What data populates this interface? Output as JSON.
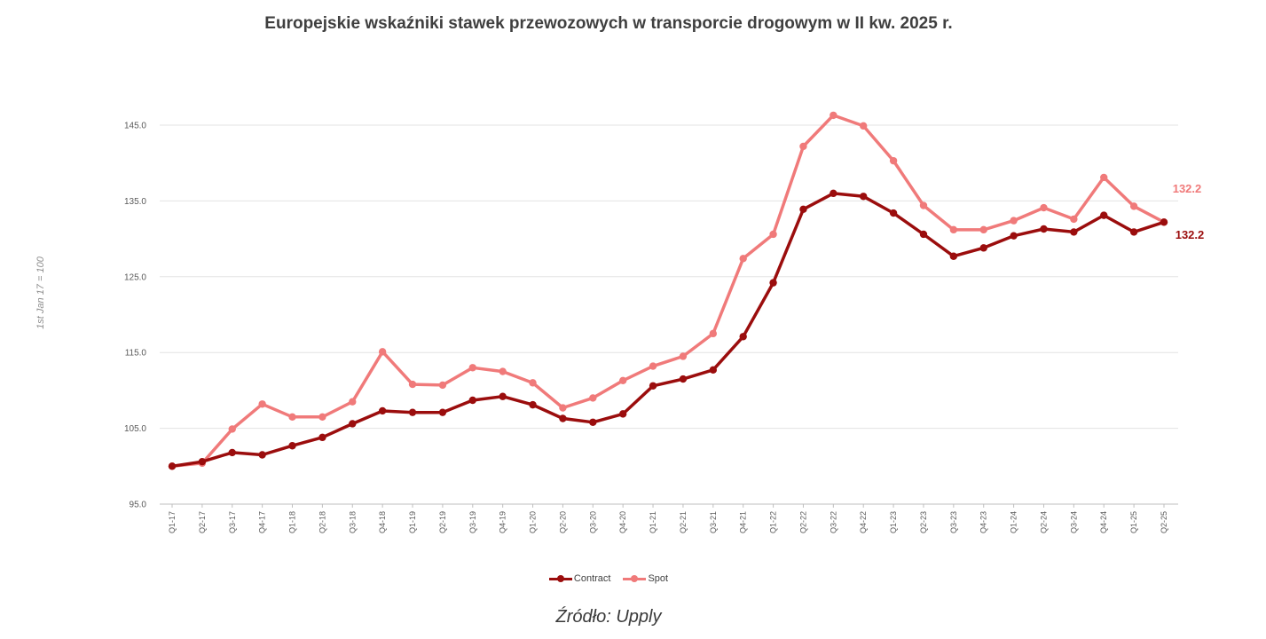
{
  "header": {
    "title": "Europejskie wskaźniki stawek przewozowych w transporcie drogowym w II kw. 2025 r."
  },
  "footer": {
    "source": "Źródło: Upply"
  },
  "chart_data": {
    "type": "line",
    "title": "Europejskie wskaźniki stawek przewozowych w transporcie drogowym w II kw. 2025 r.",
    "ylabel": "1st Jan 17 = 100",
    "xlabel": "",
    "ylim": [
      95,
      145
    ],
    "yticks": [
      "95.0",
      "105.0",
      "115.0",
      "125.0",
      "135.0",
      "145.0"
    ],
    "grid": "horizontal",
    "legend_position": "bottom",
    "categories": [
      "Q1-17",
      "Q2-17",
      "Q3-17",
      "Q4-17",
      "Q1-18",
      "Q2-18",
      "Q3-18",
      "Q4-18",
      "Q1-19",
      "Q2-19",
      "Q3-19",
      "Q4-19",
      "Q1-20",
      "Q2-20",
      "Q3-20",
      "Q4-20",
      "Q1-21",
      "Q2-21",
      "Q3-21",
      "Q4-21",
      "Q1-22",
      "Q2-22",
      "Q3-22",
      "Q4-22",
      "Q1-23",
      "Q2-23",
      "Q3-23",
      "Q4-23",
      "Q1-24",
      "Q2-24",
      "Q3-24",
      "Q4-24",
      "Q1-25",
      "Q2-25"
    ],
    "series": [
      {
        "name": "Contract",
        "color": "#9b0d0d",
        "end_label": "132.2",
        "values": [
          100.0,
          100.6,
          101.8,
          101.5,
          102.7,
          103.8,
          105.6,
          107.3,
          107.1,
          107.1,
          108.7,
          109.2,
          108.1,
          106.3,
          105.8,
          106.9,
          110.6,
          111.5,
          112.7,
          117.1,
          124.2,
          133.9,
          136.0,
          135.6,
          133.4,
          130.6,
          127.7,
          128.8,
          130.4,
          131.3,
          130.9,
          133.1,
          130.9,
          132.2
        ]
      },
      {
        "name": "Spot",
        "color": "#f07a7a",
        "end_label": "132.2",
        "values": [
          100.0,
          100.4,
          104.9,
          108.2,
          106.5,
          106.5,
          108.5,
          115.1,
          110.8,
          110.7,
          113.0,
          112.5,
          111.0,
          107.7,
          109.0,
          111.3,
          113.2,
          114.5,
          117.5,
          127.4,
          130.6,
          142.2,
          146.3,
          144.9,
          140.3,
          134.4,
          131.2,
          131.2,
          132.4,
          134.1,
          132.6,
          138.1,
          134.3,
          132.2
        ]
      }
    ]
  }
}
